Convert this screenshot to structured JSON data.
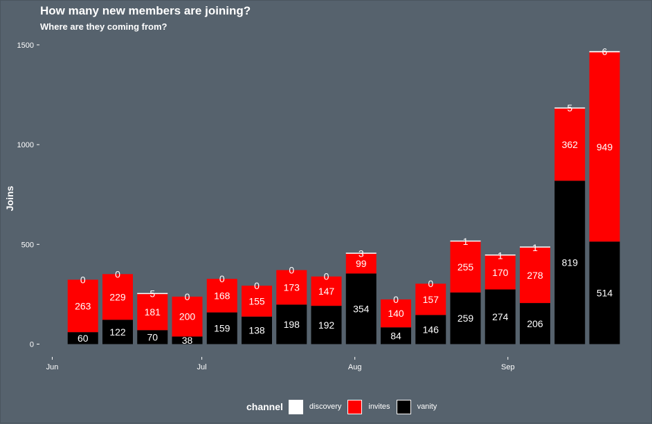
{
  "chart_data": {
    "type": "bar",
    "stacked": true,
    "title": "How many new members are joining?",
    "subtitle": "Where are they coming from?",
    "xlabel": "",
    "ylabel": "Joins",
    "ylim": [
      0,
      1550
    ],
    "y_ticks": [
      0,
      500,
      1000,
      1500
    ],
    "x_ticks": [
      {
        "label": "Jun",
        "value": 0
      },
      {
        "label": "Jul",
        "value": 4.3
      },
      {
        "label": "Aug",
        "value": 8.7
      },
      {
        "label": "Sep",
        "value": 13.1
      }
    ],
    "x_positions": [
      1,
      2,
      3,
      4,
      5,
      6,
      7,
      8,
      9,
      10,
      11,
      12,
      13,
      14,
      15,
      16
    ],
    "series": [
      {
        "name": "vanity",
        "color": "#000000",
        "values": [
          60,
          122,
          70,
          38,
          159,
          138,
          198,
          192,
          354,
          84,
          146,
          259,
          274,
          206,
          819,
          514
        ]
      },
      {
        "name": "invites",
        "color": "#ff0000",
        "values": [
          263,
          229,
          181,
          200,
          168,
          155,
          173,
          147,
          99,
          140,
          157,
          255,
          170,
          278,
          362,
          949
        ]
      },
      {
        "name": "discovery",
        "color": "#ffffff",
        "values": [
          0,
          0,
          5,
          0,
          0,
          0,
          0,
          0,
          3,
          0,
          0,
          1,
          1,
          1,
          5,
          6
        ]
      }
    ],
    "legend": {
      "title": "channel",
      "position": "bottom",
      "items": [
        {
          "label": "discovery",
          "color": "#ffffff"
        },
        {
          "label": "invites",
          "color": "#ff0000"
        },
        {
          "label": "vanity",
          "color": "#000000"
        }
      ]
    },
    "grid": false
  }
}
